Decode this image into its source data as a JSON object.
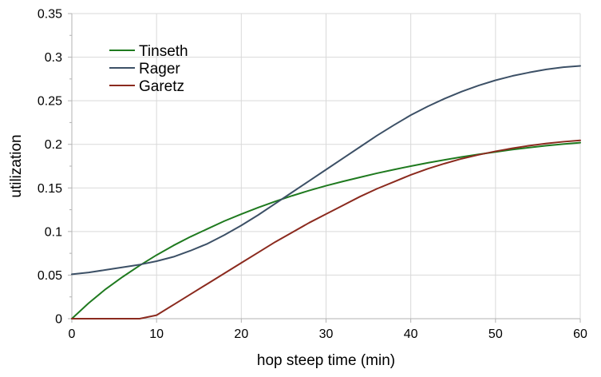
{
  "chart_data": {
    "type": "line",
    "title": "",
    "xlabel": "hop steep time (min)",
    "ylabel": "utilization",
    "xlim": [
      0,
      60
    ],
    "ylim": [
      0,
      0.35
    ],
    "x_ticks": [
      0,
      10,
      20,
      30,
      40,
      50,
      60
    ],
    "x_tick_labels": [
      "0",
      "10",
      "20",
      "30",
      "40",
      "50",
      "60"
    ],
    "y_ticks": [
      0,
      0.05,
      0.1,
      0.15,
      0.2,
      0.25,
      0.3,
      0.35
    ],
    "y_tick_labels": [
      "0",
      "0.05",
      "0.1",
      "0.15",
      "0.2",
      "0.25",
      "0.3",
      "0.35"
    ],
    "grid": true,
    "legend_position": "top-left",
    "x": [
      0,
      2,
      4,
      6,
      8,
      10,
      12,
      14,
      16,
      18,
      20,
      22,
      24,
      26,
      28,
      30,
      32,
      34,
      36,
      38,
      40,
      42,
      44,
      46,
      48,
      50,
      52,
      54,
      56,
      58,
      60
    ],
    "series": [
      {
        "name": "Tinseth",
        "color": "#1f7a1f",
        "values": [
          0,
          0.018,
          0.034,
          0.048,
          0.061,
          0.073,
          0.084,
          0.094,
          0.103,
          0.112,
          0.12,
          0.1275,
          0.1345,
          0.141,
          0.147,
          0.1525,
          0.1575,
          0.1622,
          0.1668,
          0.171,
          0.175,
          0.1788,
          0.1822,
          0.1855,
          0.1885,
          0.1913,
          0.194,
          0.1963,
          0.1985,
          0.2003,
          0.2019
        ]
      },
      {
        "name": "Rager",
        "color": "#3c5066",
        "values": [
          0.051,
          0.053,
          0.056,
          0.059,
          0.062,
          0.066,
          0.071,
          0.078,
          0.086,
          0.096,
          0.107,
          0.119,
          0.132,
          0.145,
          0.158,
          0.171,
          0.184,
          0.197,
          0.21,
          0.222,
          0.2335,
          0.2435,
          0.2525,
          0.2605,
          0.2675,
          0.2735,
          0.2785,
          0.2825,
          0.286,
          0.2885,
          0.29
        ]
      },
      {
        "name": "Garetz",
        "color": "#8b2a1e",
        "values": [
          0,
          0,
          0,
          0,
          0,
          0.004,
          0.016,
          0.028,
          0.04,
          0.052,
          0.064,
          0.076,
          0.088,
          0.099,
          0.11,
          0.12,
          0.13,
          0.14,
          0.149,
          0.157,
          0.165,
          0.172,
          0.178,
          0.1835,
          0.188,
          0.192,
          0.1955,
          0.1985,
          0.201,
          0.203,
          0.2045
        ]
      }
    ],
    "style": {
      "grid_color": "#d9d9d9",
      "axis_color": "#b3b3b3",
      "background": "#ffffff"
    }
  }
}
